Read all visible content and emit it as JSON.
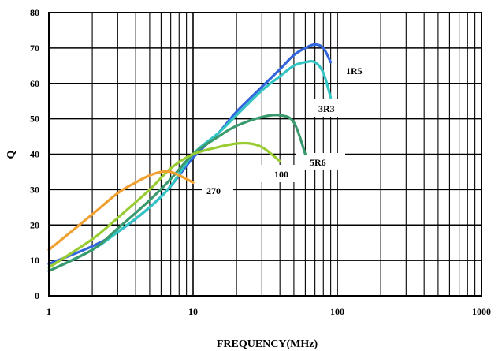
{
  "chart_data": {
    "type": "line",
    "title": "",
    "xlabel": "FREQUENCY(MHz)",
    "ylabel": "Q",
    "x_scale": "log",
    "xlim": [
      1,
      1000
    ],
    "ylim": [
      0,
      80
    ],
    "grid": true,
    "x_ticks": [
      "1",
      "10",
      "100",
      "1000"
    ],
    "y_ticks": [
      "0",
      "10",
      "20",
      "30",
      "40",
      "50",
      "60",
      "70",
      "80"
    ],
    "series": [
      {
        "name": "1R5",
        "color": "#3366dd",
        "x": [
          1,
          2,
          3,
          5,
          7,
          10,
          15,
          20,
          30,
          40,
          50,
          60,
          70,
          80,
          90
        ],
        "y": [
          9,
          14,
          18,
          25,
          31,
          39,
          46,
          52,
          59,
          64,
          68,
          70,
          71,
          70,
          66
        ]
      },
      {
        "name": "3R3",
        "color": "#33c4c4",
        "x": [
          1,
          2,
          3,
          5,
          7,
          10,
          15,
          20,
          30,
          40,
          50,
          60,
          70,
          80,
          90
        ],
        "y": [
          7,
          13,
          18,
          25,
          31,
          40,
          46,
          51,
          58,
          62,
          65,
          66,
          66,
          63,
          56
        ]
      },
      {
        "name": "5R6",
        "color": "#3a9a6e",
        "x": [
          1,
          2,
          3,
          5,
          7,
          10,
          15,
          20,
          30,
          40,
          50,
          60
        ],
        "y": [
          7,
          13,
          19,
          27,
          33,
          40,
          45,
          48,
          50.5,
          51,
          49,
          40
        ]
      },
      {
        "name": "100",
        "color": "#99cc33",
        "x": [
          1,
          2,
          3,
          5,
          7,
          10,
          15,
          20,
          25,
          30,
          35,
          40
        ],
        "y": [
          8,
          16,
          22,
          30,
          36,
          40,
          42,
          43,
          43,
          42,
          40,
          38
        ]
      },
      {
        "name": "270",
        "color": "#f0a030",
        "x": [
          1,
          2,
          3,
          4,
          5,
          6,
          7,
          8,
          9,
          10
        ],
        "y": [
          13,
          23,
          29,
          32,
          34,
          35,
          35,
          34,
          33,
          32
        ]
      }
    ],
    "labels": [
      {
        "text": "1R5",
        "series": "1R5"
      },
      {
        "text": "3R3",
        "series": "3R3"
      },
      {
        "text": "5R6",
        "series": "5R6"
      },
      {
        "text": "100",
        "series": "100"
      },
      {
        "text": "270",
        "series": "270"
      }
    ]
  }
}
